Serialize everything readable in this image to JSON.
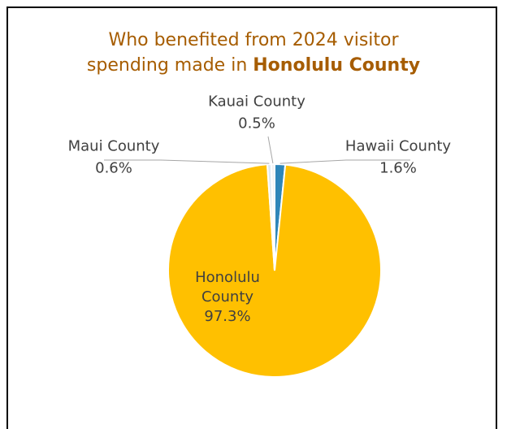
{
  "title": {
    "line1": "Who benefited from 2024 visitor",
    "line2_prefix": "spending made in ",
    "line2_bold": "Honolulu County"
  },
  "colors": {
    "title": "#a65c00"
  },
  "chart_data": {
    "type": "pie",
    "title": "Who benefited from 2024 visitor spending made in Honolulu County",
    "slices": [
      {
        "label": "Hawaii County",
        "value": 1.6,
        "display": "1.6%",
        "color": "#2e86b9"
      },
      {
        "label": "Honolulu County",
        "value": 97.3,
        "display": "97.3%",
        "color": "#ffc000"
      },
      {
        "label": "Maui County",
        "value": 0.6,
        "display": "0.6%",
        "color": "#dde9f3"
      },
      {
        "label": "Kauai County",
        "value": 0.5,
        "display": "0.5%",
        "color": "#f2f2f2"
      }
    ],
    "legend": "none",
    "data_labels": "outside with leader lines"
  }
}
